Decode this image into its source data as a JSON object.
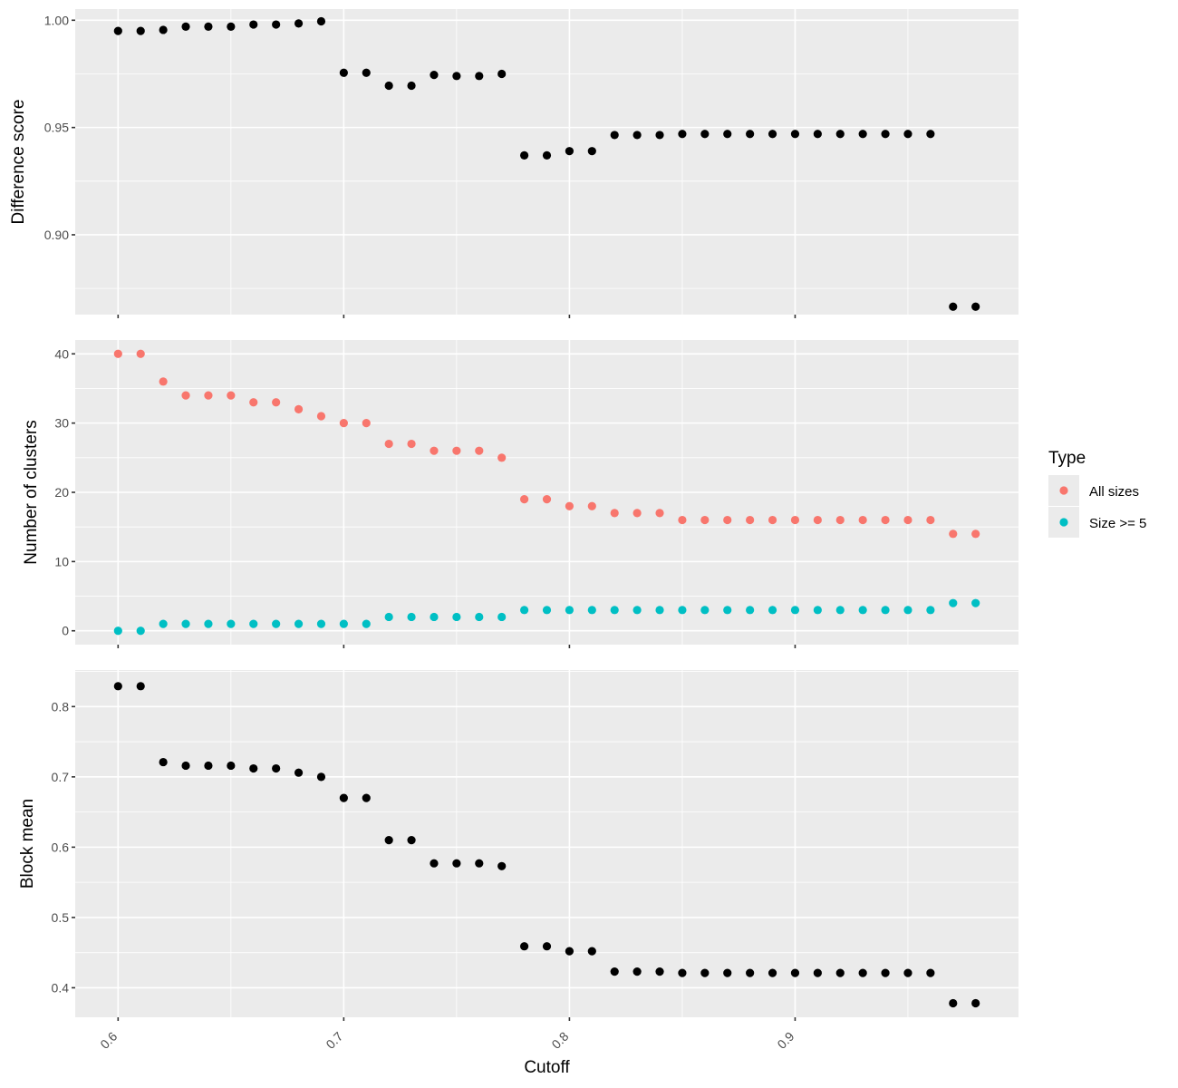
{
  "chart_data": [
    {
      "type": "scatter",
      "ylabel": "Difference score",
      "xlabel": "",
      "xlim": [
        0.581,
        0.999
      ],
      "ylim": [
        0.8628,
        1.0052
      ],
      "ytick_values": [
        0.9,
        0.95,
        1.0
      ],
      "ytick_labels": [
        "0.90",
        "0.95",
        "1.00"
      ],
      "series": [
        {
          "color": "#000000",
          "x": [
            0.6,
            0.61,
            0.62,
            0.63,
            0.64,
            0.65,
            0.66,
            0.67,
            0.68,
            0.69,
            0.7,
            0.71,
            0.72,
            0.73,
            0.74,
            0.75,
            0.76,
            0.77,
            0.78,
            0.79,
            0.8,
            0.81,
            0.82,
            0.83,
            0.84,
            0.85,
            0.86,
            0.87,
            0.88,
            0.89,
            0.9,
            0.91,
            0.92,
            0.93,
            0.94,
            0.95,
            0.96,
            0.97,
            0.98
          ],
          "y": [
            0.995,
            0.995,
            0.9955,
            0.997,
            0.997,
            0.997,
            0.998,
            0.998,
            0.9985,
            0.9995,
            0.9755,
            0.9755,
            0.9695,
            0.9695,
            0.9745,
            0.974,
            0.974,
            0.975,
            0.937,
            0.937,
            0.939,
            0.939,
            0.9465,
            0.9465,
            0.9465,
            0.947,
            0.947,
            0.947,
            0.947,
            0.947,
            0.947,
            0.947,
            0.947,
            0.947,
            0.947,
            0.947,
            0.947,
            0.8665,
            0.8665
          ]
        }
      ]
    },
    {
      "type": "scatter",
      "ylabel": "Number of clusters",
      "xlabel": "",
      "xlim": [
        0.581,
        0.999
      ],
      "ylim": [
        -2,
        42
      ],
      "ytick_values": [
        0,
        10,
        20,
        30,
        40
      ],
      "ytick_labels": [
        "0",
        "10",
        "20",
        "30",
        "40"
      ],
      "legend": {
        "title": "Type",
        "position": "right",
        "entries": [
          {
            "label": "All sizes",
            "color": "#F8766D"
          },
          {
            "label": "Size >= 5",
            "color": "#00BFC4"
          }
        ]
      },
      "series": [
        {
          "name": "All sizes",
          "color": "#F8766D",
          "x": [
            0.6,
            0.61,
            0.62,
            0.63,
            0.64,
            0.65,
            0.66,
            0.67,
            0.68,
            0.69,
            0.7,
            0.71,
            0.72,
            0.73,
            0.74,
            0.75,
            0.76,
            0.77,
            0.78,
            0.79,
            0.8,
            0.81,
            0.82,
            0.83,
            0.84,
            0.85,
            0.86,
            0.87,
            0.88,
            0.89,
            0.9,
            0.91,
            0.92,
            0.93,
            0.94,
            0.95,
            0.96,
            0.97,
            0.98
          ],
          "y": [
            40,
            40,
            36,
            34,
            34,
            34,
            33,
            33,
            32,
            31,
            30,
            30,
            27,
            27,
            26,
            26,
            26,
            25,
            19,
            19,
            18,
            18,
            17,
            17,
            17,
            16,
            16,
            16,
            16,
            16,
            16,
            16,
            16,
            16,
            16,
            16,
            16,
            14,
            14
          ]
        },
        {
          "name": "Size >= 5",
          "color": "#00BFC4",
          "x": [
            0.6,
            0.61,
            0.62,
            0.63,
            0.64,
            0.65,
            0.66,
            0.67,
            0.68,
            0.69,
            0.7,
            0.71,
            0.72,
            0.73,
            0.74,
            0.75,
            0.76,
            0.77,
            0.78,
            0.79,
            0.8,
            0.81,
            0.82,
            0.83,
            0.84,
            0.85,
            0.86,
            0.87,
            0.88,
            0.89,
            0.9,
            0.91,
            0.92,
            0.93,
            0.94,
            0.95,
            0.96,
            0.97,
            0.98
          ],
          "y": [
            0,
            0,
            1,
            1,
            1,
            1,
            1,
            1,
            1,
            1,
            1,
            1,
            2,
            2,
            2,
            2,
            2,
            2,
            3,
            3,
            3,
            3,
            3,
            3,
            3,
            3,
            3,
            3,
            3,
            3,
            3,
            3,
            3,
            3,
            3,
            3,
            3,
            4,
            4
          ]
        }
      ]
    },
    {
      "type": "scatter",
      "ylabel": "Block mean",
      "xlabel": "Cutoff",
      "xlim": [
        0.581,
        0.999
      ],
      "ylim": [
        0.358,
        0.852
      ],
      "ytick_values": [
        0.4,
        0.5,
        0.6,
        0.7,
        0.8
      ],
      "ytick_labels": [
        "0.4",
        "0.5",
        "0.6",
        "0.7",
        "0.8"
      ],
      "xtick_values": [
        0.6,
        0.7,
        0.8,
        0.9
      ],
      "xtick_labels": [
        "0.6",
        "0.7",
        "0.8",
        "0.9"
      ],
      "series": [
        {
          "color": "#000000",
          "x": [
            0.6,
            0.61,
            0.62,
            0.63,
            0.64,
            0.65,
            0.66,
            0.67,
            0.68,
            0.69,
            0.7,
            0.71,
            0.72,
            0.73,
            0.74,
            0.75,
            0.76,
            0.77,
            0.78,
            0.79,
            0.8,
            0.81,
            0.82,
            0.83,
            0.84,
            0.85,
            0.86,
            0.87,
            0.88,
            0.89,
            0.9,
            0.91,
            0.92,
            0.93,
            0.94,
            0.95,
            0.96,
            0.97,
            0.98
          ],
          "y": [
            0.829,
            0.829,
            0.721,
            0.716,
            0.716,
            0.716,
            0.712,
            0.712,
            0.706,
            0.7,
            0.67,
            0.67,
            0.61,
            0.61,
            0.577,
            0.577,
            0.577,
            0.573,
            0.459,
            0.459,
            0.452,
            0.452,
            0.423,
            0.423,
            0.423,
            0.421,
            0.421,
            0.421,
            0.421,
            0.421,
            0.421,
            0.421,
            0.421,
            0.421,
            0.421,
            0.421,
            0.421,
            0.378,
            0.378
          ]
        }
      ]
    }
  ]
}
